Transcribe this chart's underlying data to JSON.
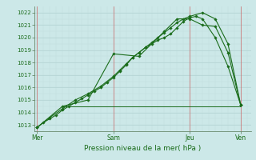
{
  "xlabel": "Pression niveau de la mer( hPa )",
  "bg_color": "#cce8e8",
  "grid_color": "#aacccc",
  "grid_color_minor": "#c0dcdc",
  "line_color": "#1a6c1a",
  "ylim": [
    1012.5,
    1022.5
  ],
  "yticks": [
    1013,
    1014,
    1015,
    1016,
    1017,
    1018,
    1019,
    1020,
    1021,
    1022
  ],
  "day_labels": [
    "Mer",
    "Sam",
    "Jeu",
    "Ven"
  ],
  "day_positions": [
    0,
    3,
    6,
    8
  ],
  "series1_x": [
    0,
    0.25,
    0.5,
    0.75,
    1.0,
    1.25,
    1.5,
    1.75,
    2.0,
    2.25,
    2.5,
    2.75,
    3.0,
    3.25,
    3.5,
    3.75,
    4.0,
    4.25,
    4.5,
    4.75,
    5.0,
    5.25,
    5.5,
    5.75,
    6.0,
    6.25,
    6.5,
    7.0,
    7.5,
    8.0
  ],
  "series1_y": [
    1012.8,
    1013.2,
    1013.5,
    1013.8,
    1014.2,
    1014.5,
    1014.8,
    1015.1,
    1015.4,
    1015.7,
    1016.0,
    1016.4,
    1016.8,
    1017.3,
    1017.8,
    1018.4,
    1018.8,
    1019.2,
    1019.5,
    1019.8,
    1020.0,
    1020.3,
    1020.8,
    1021.3,
    1021.6,
    1021.7,
    1021.5,
    1020.0,
    1017.7,
    1014.6
  ],
  "series2_x": [
    0,
    0.5,
    1.0,
    1.5,
    2.0,
    2.5,
    3.0,
    3.25,
    3.5,
    3.75,
    4.0,
    4.25,
    4.5,
    4.75,
    5.0,
    5.25,
    5.5,
    5.75,
    6.0,
    6.5,
    7.0,
    7.5,
    8.0
  ],
  "series2_y": [
    1012.8,
    1013.6,
    1014.3,
    1015.0,
    1015.5,
    1016.1,
    1016.9,
    1017.4,
    1017.9,
    1018.4,
    1018.8,
    1019.2,
    1019.6,
    1020.0,
    1020.4,
    1020.8,
    1021.2,
    1021.5,
    1021.7,
    1022.0,
    1021.5,
    1019.5,
    1014.6
  ],
  "series3_x": [
    0,
    1.0,
    2.0,
    3.0,
    4.0,
    5.0,
    5.5,
    6.0,
    6.5,
    7.0,
    7.5,
    8.0
  ],
  "series3_y": [
    1012.8,
    1014.5,
    1015.0,
    1018.7,
    1018.5,
    1020.5,
    1021.5,
    1021.5,
    1021.0,
    1020.9,
    1018.8,
    1014.6
  ],
  "hline_y": 1014.5,
  "hline_x_start": 1.0,
  "hline_x_end": 8.0,
  "xmin": -0.1,
  "xmax": 8.4,
  "vline_positions": [
    0,
    3,
    6,
    8
  ],
  "vline_color": "#cc6666",
  "label_fontsize": 5.0,
  "xlabel_fontsize": 6.5,
  "xtick_fontsize": 5.5,
  "marker_size": 1.8,
  "line_width": 0.8
}
